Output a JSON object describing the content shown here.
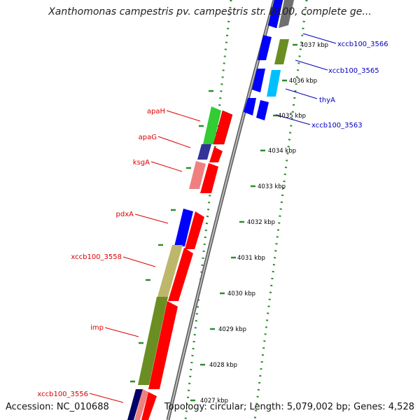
{
  "header": {
    "title": "Xanthomonas campestris pv. campestris str. B100, complete ge..."
  },
  "footer": {
    "accession": "Accession: NC_010688",
    "summary": "Topology: circular; Length: 5,079,002 bp; Genes: 4,528"
  },
  "colors": {
    "forward_cds": "#ff0000",
    "reverse_blue": "#0000ff",
    "reverse_green": "#33cc33",
    "reverse_olive": "#6b8e23",
    "reverse_khaki": "#bdb76b",
    "reverse_navy": "#333399",
    "reverse_pink": "#f08080",
    "reverse_cyan": "#00bfff",
    "reverse_grey": "#808080",
    "backbone": "#8c8c8c",
    "ruler_dots": "#2e8b2e",
    "label_red": "#dd0000",
    "label_blue": "#0000bb"
  },
  "ruler": {
    "kbp_labels": [
      "4037 kbp",
      "4036 kbp",
      "4035 kbp",
      "4034 kbp",
      "4033 kbp",
      "4032 kbp",
      "4031 kbp",
      "4030 kbp",
      "4029 kbp",
      "4028 kbp",
      "4027 kbp"
    ]
  },
  "gene_labels": {
    "red": [
      "apaH",
      "apaG",
      "ksgA",
      "pdxA",
      "xccb100_3558",
      "imp",
      "xccb100_3556"
    ],
    "blue": [
      "xccb100_3566",
      "xccb100_3565",
      "thyA",
      "xccb100_3563"
    ]
  }
}
